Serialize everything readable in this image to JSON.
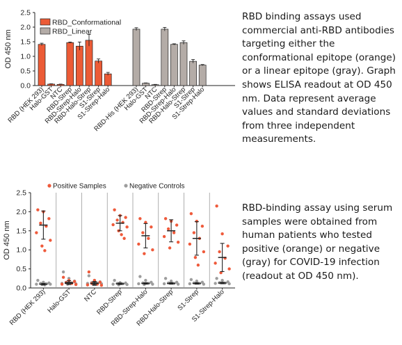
{
  "chart_data": [
    {
      "type": "bar",
      "ylabel": "OD 450 nm",
      "ylim": [
        0,
        2.5
      ],
      "yticks": [
        0.0,
        0.5,
        1.0,
        1.5,
        2.0,
        2.5
      ],
      "legend_placement": "top-left",
      "series": [
        {
          "name": "RBD_Conformational",
          "color": "#ec5b36",
          "categories": [
            "RBD (HEK 293)",
            "Halo-GST",
            "NTC",
            "RBD-Strep",
            "RBD-Strep-Halo",
            "RBD-Halo-Strep",
            "S1-Strep",
            "S1-Strep-Halo"
          ],
          "values": [
            1.41,
            0.05,
            0.04,
            1.47,
            1.35,
            1.55,
            0.84,
            0.4
          ],
          "errors": [
            0.04,
            0.01,
            0.01,
            0.02,
            0.14,
            0.2,
            0.07,
            0.05
          ]
        },
        {
          "name": "RBD_Linear",
          "color": "#b4aca7",
          "categories": [
            "RBD-His (HEK 293)",
            "Halo-GST",
            "NTC",
            "RBD-Strep",
            "RBD-Strep-Halo",
            "RBD-Halo-Strep",
            "S1-Strep",
            "S1-Strep-Halo"
          ],
          "values": [
            1.93,
            0.08,
            0.03,
            1.93,
            1.41,
            1.47,
            0.83,
            0.7
          ],
          "errors": [
            0.05,
            0.01,
            0.01,
            0.06,
            0.02,
            0.06,
            0.06,
            0.02
          ]
        }
      ]
    },
    {
      "type": "scatter",
      "ylabel": "OD 450 nm",
      "ylim": [
        0,
        2.5
      ],
      "yticks": [
        0.0,
        0.5,
        1.0,
        1.5,
        2.0,
        2.5
      ],
      "legend_placement": "top",
      "categories": [
        "RBD (HEK 293)",
        "Halo-GST",
        "NTC",
        "RBD-Strep",
        "RBD-Strep-Halo",
        "RBD-Halo-Strep",
        "S1-Strep",
        "S1-Strep-Halo"
      ],
      "series": [
        {
          "name": "Positive Samples",
          "color": "#ef5a3b",
          "mean": [
            1.65,
            0.14,
            0.12,
            1.7,
            1.37,
            1.5,
            1.3,
            0.8
          ],
          "sd": [
            0.37,
            0.05,
            0.05,
            0.2,
            0.32,
            0.29,
            0.44,
            0.37
          ],
          "points": [
            [
              2.05,
              2.0,
              1.82,
              1.7,
              1.62,
              1.45,
              1.25,
              1.1,
              0.98
            ],
            [
              0.28,
              0.2,
              0.17,
              0.14,
              0.12,
              0.1,
              0.09
            ],
            [
              0.42,
              0.2,
              0.15,
              0.12,
              0.1,
              0.08,
              0.07
            ],
            [
              2.05,
              1.9,
              1.85,
              1.78,
              1.72,
              1.66,
              1.6,
              1.5,
              1.4,
              1.3
            ],
            [
              1.82,
              1.72,
              1.6,
              1.45,
              1.3,
              1.15,
              1.0,
              0.9
            ],
            [
              1.82,
              1.75,
              1.65,
              1.55,
              1.45,
              1.35,
              1.2,
              1.05
            ],
            [
              1.95,
              1.75,
              1.62,
              1.45,
              1.3,
              1.15,
              0.95,
              0.8,
              0.6
            ],
            [
              2.15,
              1.42,
              1.1,
              0.95,
              0.78,
              0.65,
              0.5,
              0.4
            ]
          ]
        },
        {
          "name": "Negative Controls",
          "color": "#9d9d9d",
          "mean": [
            0.1,
            0.12,
            0.12,
            0.11,
            0.12,
            0.12,
            0.12,
            0.13
          ],
          "sd": [
            0.02,
            0.03,
            0.03,
            0.02,
            0.02,
            0.02,
            0.02,
            0.02
          ],
          "points": [
            [
              0.2,
              0.15,
              0.13,
              0.12,
              0.11,
              0.1,
              0.1,
              0.09,
              0.08
            ],
            [
              0.42,
              0.25,
              0.18,
              0.15,
              0.13,
              0.12,
              0.11,
              0.1
            ],
            [
              0.32,
              0.2,
              0.16,
              0.14,
              0.13,
              0.12,
              0.11,
              0.1
            ],
            [
              0.2,
              0.14,
              0.13,
              0.12,
              0.11,
              0.1,
              0.09,
              0.08
            ],
            [
              0.3,
              0.2,
              0.15,
              0.13,
              0.12,
              0.11,
              0.1,
              0.09
            ],
            [
              0.25,
              0.18,
              0.15,
              0.13,
              0.12,
              0.11,
              0.1
            ],
            [
              0.22,
              0.18,
              0.15,
              0.13,
              0.12,
              0.11,
              0.1
            ],
            [
              0.25,
              0.2,
              0.16,
              0.14,
              0.13,
              0.12,
              0.11
            ]
          ]
        }
      ]
    }
  ],
  "captions": {
    "top": "RBD binding assays used commercial anti-RBD antibodies targeting either the conformational epitope (orange) or a linear epitope (gray). Graph shows ELISA readout at OD 450 nm. Data represent average values and standard deviations from three independent measurements.",
    "bottom": "RBD-binding assay using serum samples were obtained from human patients who tested positive (orange) or negative (gray) for COVID-19 infection (readout at OD 450 nm)."
  }
}
